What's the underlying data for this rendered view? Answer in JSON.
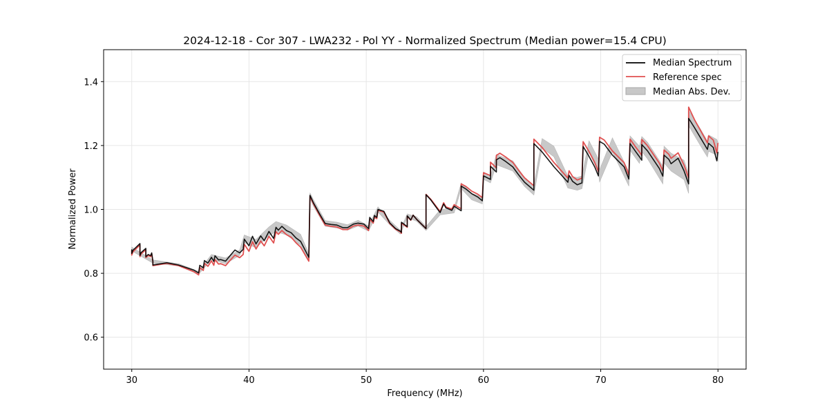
{
  "chart_data": {
    "type": "line",
    "title": "2024-12-18 - Cor 307 - LWA232 - Pol YY - Normalized Spectrum (Median power=15.4 CPU)",
    "xlabel": "Frequency (MHz)",
    "ylabel": "Normalized Power",
    "xlim": [
      27.6,
      82.4
    ],
    "ylim": [
      0.5,
      1.5
    ],
    "xticks": [
      30,
      40,
      50,
      60,
      70,
      80
    ],
    "yticks": [
      0.6,
      0.8,
      1.0,
      1.2,
      1.4
    ],
    "xtick_labels": [
      "30",
      "40",
      "50",
      "60",
      "70",
      "80"
    ],
    "ytick_labels": [
      "0.6",
      "0.8",
      "1.0",
      "1.2",
      "1.4"
    ],
    "grid": true,
    "legend_position": "top-right",
    "series": [
      {
        "name": "Median Spectrum",
        "color": "#000000",
        "x": [
          30.0,
          30.0,
          30.1,
          30.7,
          30.7,
          30.8,
          31.2,
          31.2,
          31.4,
          31.6,
          31.7,
          31.8,
          31.8,
          33.0,
          34.0,
          35.3,
          35.7,
          35.8,
          36.1,
          36.2,
          36.5,
          36.8,
          37.0,
          37.1,
          37.4,
          37.6,
          38.0,
          38.4,
          38.8,
          39.2,
          39.5,
          39.6,
          40.0,
          40.3,
          40.6,
          41.0,
          41.3,
          41.7,
          42.1,
          42.3,
          42.5,
          42.8,
          43.2,
          43.6,
          44.0,
          44.4,
          45.1,
          45.2,
          45.2,
          45.5,
          46.0,
          46.5,
          47.0,
          47.5,
          48.0,
          48.4,
          48.9,
          49.3,
          49.8,
          50.2,
          50.3,
          50.6,
          50.7,
          50.9,
          51.0,
          51.5,
          52.0,
          52.5,
          52.9,
          53.0,
          53.0,
          53.5,
          53.5,
          53.8,
          54.0,
          54.3,
          55.1,
          55.1,
          55.5,
          56.3,
          56.6,
          56.8,
          57.3,
          57.5,
          58.1,
          58.1,
          58.5,
          59.0,
          59.5,
          59.9,
          60.0,
          60.6,
          60.6,
          61.1,
          61.1,
          61.4,
          61.9,
          62.5,
          63.0,
          63.5,
          64.3,
          64.3,
          65.0,
          66.0,
          67.2,
          67.3,
          67.6,
          68.0,
          68.4,
          68.5,
          69.0,
          69.5,
          69.8,
          69.9,
          70.3,
          71.0,
          72.0,
          72.4,
          72.5,
          73.0,
          73.3,
          73.5,
          73.5,
          74.0,
          75.0,
          75.3,
          75.4,
          75.8,
          76.0,
          76.6,
          77.1,
          77.5,
          77.5,
          78.0,
          78.5,
          79.1,
          79.2,
          79.6,
          79.9,
          80.0
        ],
        "y": [
          0.875,
          0.862,
          0.872,
          0.893,
          0.856,
          0.865,
          0.878,
          0.852,
          0.859,
          0.855,
          0.864,
          0.838,
          0.826,
          0.833,
          0.826,
          0.81,
          0.801,
          0.825,
          0.817,
          0.84,
          0.832,
          0.85,
          0.837,
          0.855,
          0.842,
          0.843,
          0.838,
          0.856,
          0.873,
          0.864,
          0.875,
          0.907,
          0.886,
          0.916,
          0.892,
          0.917,
          0.902,
          0.931,
          0.909,
          0.944,
          0.935,
          0.947,
          0.934,
          0.927,
          0.911,
          0.9,
          0.85,
          1.043,
          1.044,
          1.02,
          0.987,
          0.956,
          0.953,
          0.951,
          0.943,
          0.943,
          0.954,
          0.957,
          0.954,
          0.94,
          0.975,
          0.962,
          0.981,
          0.975,
          1.0,
          0.994,
          0.958,
          0.94,
          0.932,
          0.928,
          0.96,
          0.946,
          0.98,
          0.967,
          0.982,
          0.969,
          0.94,
          1.046,
          1.03,
          0.99,
          1.017,
          1.005,
          0.997,
          1.01,
          0.996,
          1.073,
          1.064,
          1.049,
          1.039,
          1.027,
          1.105,
          1.094,
          1.135,
          1.117,
          1.155,
          1.162,
          1.15,
          1.133,
          1.108,
          1.085,
          1.06,
          1.206,
          1.18,
          1.134,
          1.085,
          1.107,
          1.088,
          1.077,
          1.083,
          1.197,
          1.166,
          1.132,
          1.105,
          1.213,
          1.204,
          1.17,
          1.133,
          1.095,
          1.206,
          1.18,
          1.165,
          1.154,
          1.203,
          1.183,
          1.128,
          1.104,
          1.17,
          1.157,
          1.143,
          1.16,
          1.121,
          1.08,
          1.285,
          1.256,
          1.225,
          1.188,
          1.207,
          1.194,
          1.152,
          1.18
        ]
      },
      {
        "name": "Reference spec",
        "color": "#e05050",
        "x": [
          30.0,
          30.0,
          30.1,
          30.7,
          30.7,
          30.8,
          31.2,
          31.2,
          31.4,
          31.6,
          31.7,
          31.8,
          31.8,
          33.0,
          34.0,
          35.3,
          35.7,
          35.8,
          36.1,
          36.2,
          36.5,
          36.8,
          37.0,
          37.1,
          37.4,
          37.6,
          38.0,
          38.4,
          38.8,
          39.2,
          39.5,
          39.6,
          40.0,
          40.3,
          40.6,
          41.0,
          41.3,
          41.7,
          42.1,
          42.3,
          42.5,
          42.8,
          43.2,
          43.6,
          44.0,
          44.4,
          45.1,
          45.2,
          45.2,
          45.5,
          46.0,
          46.5,
          47.0,
          47.5,
          48.0,
          48.4,
          48.9,
          49.3,
          49.8,
          50.2,
          50.3,
          50.6,
          50.7,
          50.9,
          51.0,
          51.5,
          52.0,
          52.5,
          52.9,
          53.0,
          53.0,
          53.5,
          53.5,
          53.8,
          54.0,
          54.3,
          55.1,
          55.1,
          55.5,
          56.3,
          56.6,
          56.8,
          57.3,
          57.5,
          58.1,
          58.1,
          58.5,
          59.0,
          59.5,
          59.9,
          60.0,
          60.6,
          60.6,
          61.1,
          61.1,
          61.4,
          61.9,
          62.5,
          63.0,
          63.5,
          64.3,
          64.3,
          65.0,
          66.0,
          67.2,
          67.3,
          67.6,
          68.0,
          68.4,
          68.5,
          69.0,
          69.5,
          69.8,
          69.9,
          70.3,
          71.0,
          72.0,
          72.4,
          72.5,
          73.0,
          73.3,
          73.5,
          73.5,
          74.0,
          75.0,
          75.3,
          75.4,
          75.8,
          76.0,
          76.6,
          77.1,
          77.5,
          77.5,
          78.0,
          78.5,
          79.1,
          79.2,
          79.6,
          79.9,
          80.0
        ],
        "y": [
          0.872,
          0.857,
          0.867,
          0.889,
          0.852,
          0.861,
          0.874,
          0.849,
          0.856,
          0.852,
          0.861,
          0.836,
          0.824,
          0.831,
          0.824,
          0.805,
          0.795,
          0.818,
          0.809,
          0.831,
          0.822,
          0.839,
          0.825,
          0.843,
          0.829,
          0.83,
          0.824,
          0.841,
          0.857,
          0.849,
          0.859,
          0.891,
          0.869,
          0.899,
          0.876,
          0.901,
          0.886,
          0.916,
          0.895,
          0.93,
          0.922,
          0.934,
          0.921,
          0.913,
          0.896,
          0.882,
          0.838,
          1.04,
          1.041,
          1.017,
          0.983,
          0.951,
          0.947,
          0.945,
          0.937,
          0.937,
          0.948,
          0.951,
          0.948,
          0.934,
          0.969,
          0.957,
          0.976,
          0.971,
          0.997,
          0.992,
          0.956,
          0.938,
          0.93,
          0.925,
          0.957,
          0.944,
          0.978,
          0.966,
          0.982,
          0.969,
          0.94,
          1.047,
          1.032,
          0.993,
          1.021,
          1.008,
          1.001,
          1.015,
          1.002,
          1.08,
          1.072,
          1.057,
          1.048,
          1.037,
          1.115,
          1.106,
          1.148,
          1.13,
          1.169,
          1.176,
          1.164,
          1.147,
          1.122,
          1.099,
          1.074,
          1.22,
          1.194,
          1.147,
          1.098,
          1.121,
          1.103,
          1.092,
          1.098,
          1.212,
          1.181,
          1.146,
          1.118,
          1.226,
          1.217,
          1.183,
          1.146,
          1.108,
          1.22,
          1.194,
          1.18,
          1.169,
          1.219,
          1.199,
          1.145,
          1.121,
          1.186,
          1.173,
          1.16,
          1.177,
          1.139,
          1.098,
          1.32,
          1.281,
          1.248,
          1.208,
          1.23,
          1.217,
          1.177,
          1.208
        ]
      }
    ],
    "band": {
      "name": "Median Abs. Dev.",
      "color": "#c8c8c8",
      "x": [
        30.0,
        31.8,
        34.0,
        35.7,
        36.8,
        38.0,
        39.2,
        39.6,
        40.6,
        41.7,
        42.3,
        43.2,
        44.4,
        45.1,
        45.2,
        45.5,
        46.5,
        47.5,
        48.4,
        49.3,
        50.2,
        51.0,
        52.0,
        52.9,
        53.5,
        54.3,
        55.1,
        56.3,
        57.5,
        58.1,
        59.0,
        59.9,
        60.0,
        60.6,
        61.1,
        62.5,
        63.5,
        64.3,
        65.0,
        66.0,
        67.2,
        68.0,
        68.4,
        69.0,
        69.8,
        69.9,
        71.0,
        72.4,
        72.5,
        73.3,
        73.5,
        74.0,
        75.3,
        75.4,
        76.0,
        77.1,
        77.5,
        77.5,
        78.5,
        79.1,
        79.2,
        79.9,
        80.0
      ],
      "lower": [
        0.87,
        0.832,
        0.823,
        0.797,
        0.843,
        0.83,
        0.856,
        0.896,
        0.88,
        0.918,
        0.93,
        0.92,
        0.888,
        0.842,
        1.034,
        1.01,
        0.947,
        0.942,
        0.935,
        0.948,
        0.932,
        0.992,
        0.952,
        0.923,
        0.974,
        0.963,
        0.934,
        0.983,
        0.989,
        1.065,
        1.03,
        1.017,
        1.094,
        1.083,
        1.14,
        1.12,
        1.072,
        1.045,
        1.192,
        1.165,
        1.067,
        1.06,
        1.065,
        1.18,
        1.116,
        1.086,
        1.18,
        1.073,
        1.185,
        1.144,
        1.181,
        1.158,
        1.08,
        1.146,
        1.12,
        1.093,
        1.05,
        1.262,
        1.2,
        1.164,
        1.182,
        1.17,
        1.15
      ],
      "upper": [
        0.882,
        0.842,
        0.83,
        0.806,
        0.859,
        0.848,
        0.873,
        0.92,
        0.906,
        0.945,
        0.962,
        0.951,
        0.922,
        0.862,
        1.052,
        1.03,
        0.965,
        0.96,
        0.952,
        0.966,
        0.949,
        1.008,
        0.966,
        0.935,
        0.986,
        0.977,
        0.946,
        0.999,
        1.005,
        1.083,
        1.05,
        1.039,
        1.117,
        1.105,
        1.172,
        1.152,
        1.1,
        1.075,
        1.222,
        1.198,
        1.104,
        1.1,
        1.105,
        1.215,
        1.158,
        1.124,
        1.224,
        1.118,
        1.23,
        1.198,
        1.228,
        1.21,
        1.136,
        1.198,
        1.176,
        1.154,
        1.112,
        1.31,
        1.252,
        1.214,
        1.233,
        1.219,
        1.21
      ]
    },
    "legend": [
      "Median Spectrum",
      "Reference spec",
      "Median Abs. Dev."
    ]
  }
}
